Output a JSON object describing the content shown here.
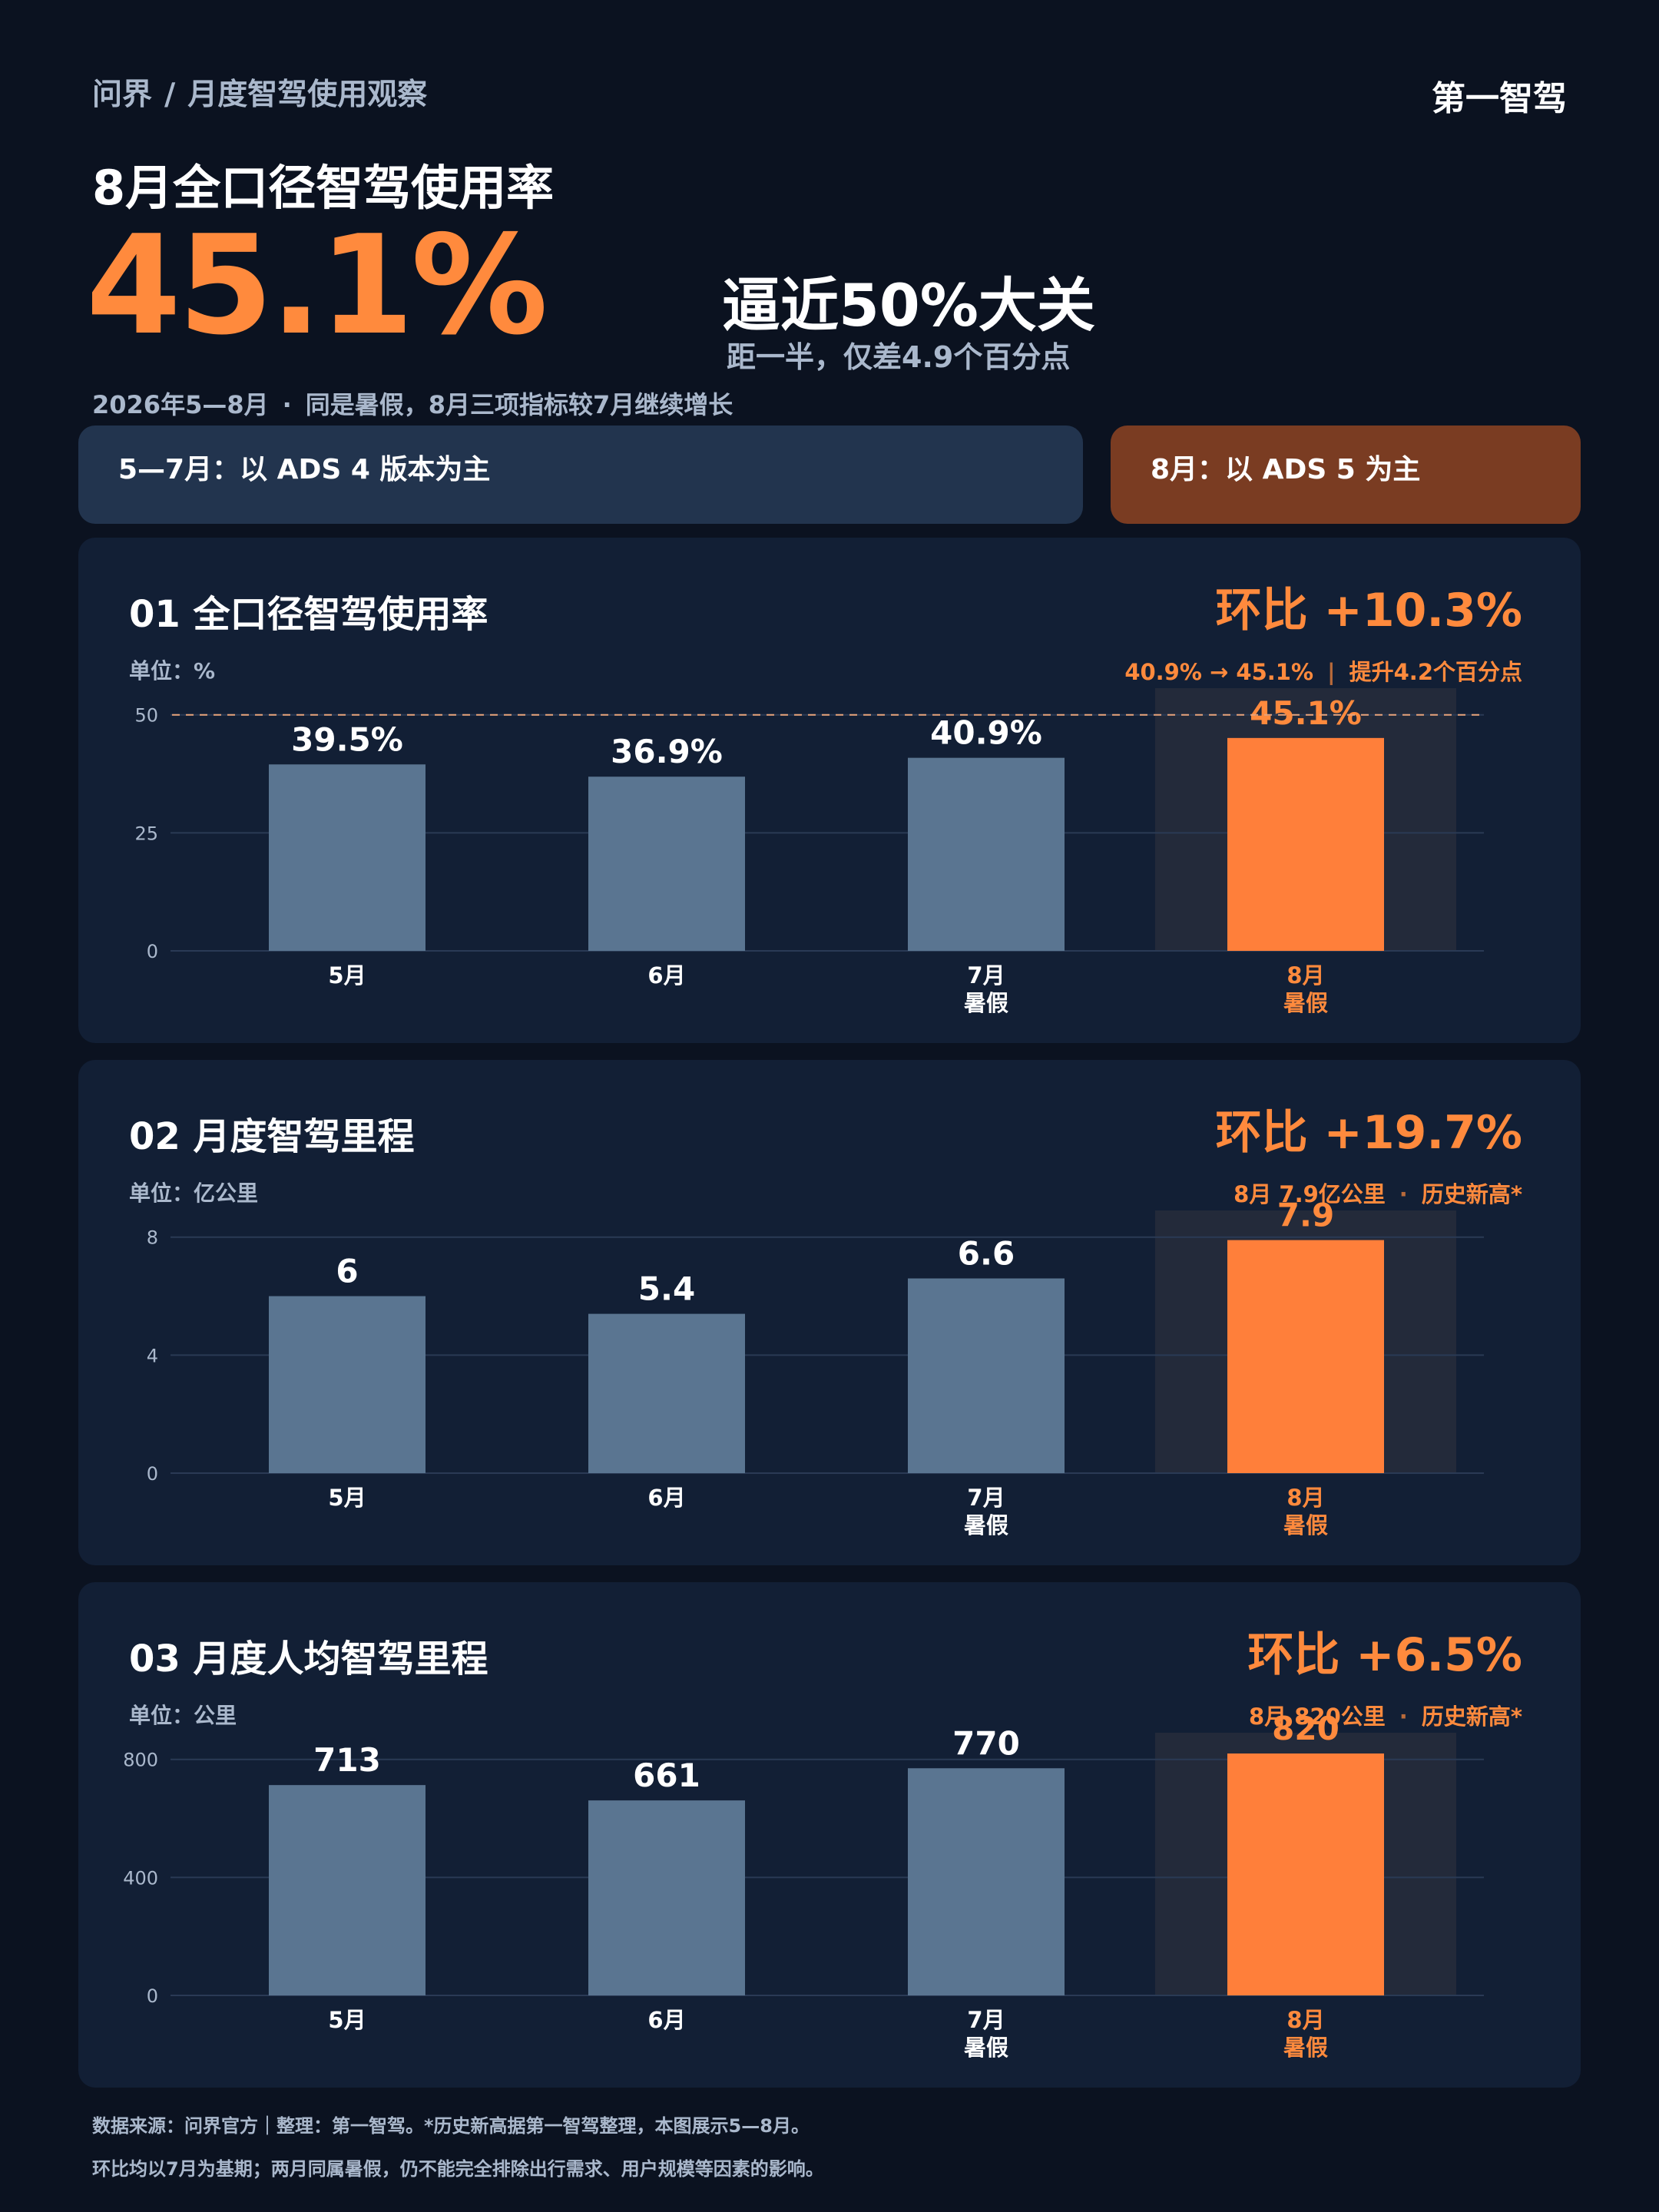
{
  "header": {
    "breadcrumb_root": "问界",
    "breadcrumb_sep": "/",
    "breadcrumb_page": "月度智驾使用观察",
    "brand": "第一智驾"
  },
  "hero": {
    "title": "8月全口径智驾使用率",
    "big_value": "45.1%",
    "headline": "逼近50%大关",
    "subheadline": "距一半，仅差4.9个百分点",
    "period": "2026年5—8月",
    "period_dot": "·",
    "period_note": "同是暑假，8月三项指标较7月继续增长"
  },
  "phases": {
    "a_label": "5—7月：以 ADS 4 版本为主",
    "b_label": "8月：以 ADS 5 为主"
  },
  "panels": [
    {
      "title": "01  全口径智驾使用率",
      "unit": "单位：%",
      "change": "环比 +10.3%",
      "note_a": "40.9% → 45.1%",
      "note_sep": "|",
      "note_b": "提升4.2个百分点"
    },
    {
      "title": "02  月度智驾里程",
      "unit": "单位：亿公里",
      "change": "环比 +19.7%",
      "note_a": "8月 7.9亿公里",
      "note_sep": "·",
      "note_b": "历史新高*"
    },
    {
      "title": "03  月度人均智驾里程",
      "unit": "单位：公里",
      "change": "环比 +6.5%",
      "note_a": "8月 820公里",
      "note_sep": "·",
      "note_b": "历史新高*"
    }
  ],
  "chart_data": [
    {
      "type": "bar",
      "title": "01  全口径智驾使用率",
      "ylabel": "单位：%",
      "categories": [
        "5月",
        "6月",
        "7月",
        "8月"
      ],
      "category_sublabels": [
        "",
        "",
        "暑假",
        "暑假"
      ],
      "values": [
        39.5,
        36.9,
        40.9,
        45.1
      ],
      "value_labels": [
        "39.5%",
        "36.9%",
        "40.9%",
        "45.1%"
      ],
      "ylim": [
        0,
        55
      ],
      "yticks": [
        0,
        25,
        50
      ],
      "reference_line": 50,
      "highlight_index": 3,
      "grid": true,
      "colors": {
        "bar": "#5a7591",
        "highlight": "#ff7f3a",
        "label": "#ffffff",
        "highlight_label": "#ff8a3d"
      }
    },
    {
      "type": "bar",
      "title": "02  月度智驾里程",
      "ylabel": "单位：亿公里",
      "categories": [
        "5月",
        "6月",
        "7月",
        "8月"
      ],
      "category_sublabels": [
        "",
        "",
        "暑假",
        "暑假"
      ],
      "values": [
        6,
        5.4,
        6.6,
        7.9
      ],
      "value_labels": [
        "6",
        "5.4",
        "6.6",
        "7.9"
      ],
      "ylim": [
        0,
        8.8
      ],
      "yticks": [
        0,
        4,
        8
      ],
      "highlight_index": 3,
      "grid": true,
      "colors": {
        "bar": "#5a7591",
        "highlight": "#ff7f3a",
        "label": "#ffffff",
        "highlight_label": "#ff8a3d"
      }
    },
    {
      "type": "bar",
      "title": "03  月度人均智驾里程",
      "ylabel": "单位：公里",
      "categories": [
        "5月",
        "6月",
        "7月",
        "8月"
      ],
      "category_sublabels": [
        "",
        "",
        "暑假",
        "暑假"
      ],
      "values": [
        713,
        661,
        770,
        820
      ],
      "value_labels": [
        "713",
        "661",
        "770",
        "820"
      ],
      "ylim": [
        0,
        880
      ],
      "yticks": [
        0,
        400,
        800
      ],
      "highlight_index": 3,
      "grid": true,
      "colors": {
        "bar": "#5a7591",
        "highlight": "#ff7f3a",
        "label": "#ffffff",
        "highlight_label": "#ff8a3d"
      }
    }
  ],
  "footer": {
    "line1": "数据来源：问界官方｜整理：第一智驾。*历史新高据第一智驾整理，本图展示5—8月。",
    "line2": "环比均以7月为基期；两月同属暑假，仍不能完全排除出行需求、用户规模等因素的影响。"
  }
}
